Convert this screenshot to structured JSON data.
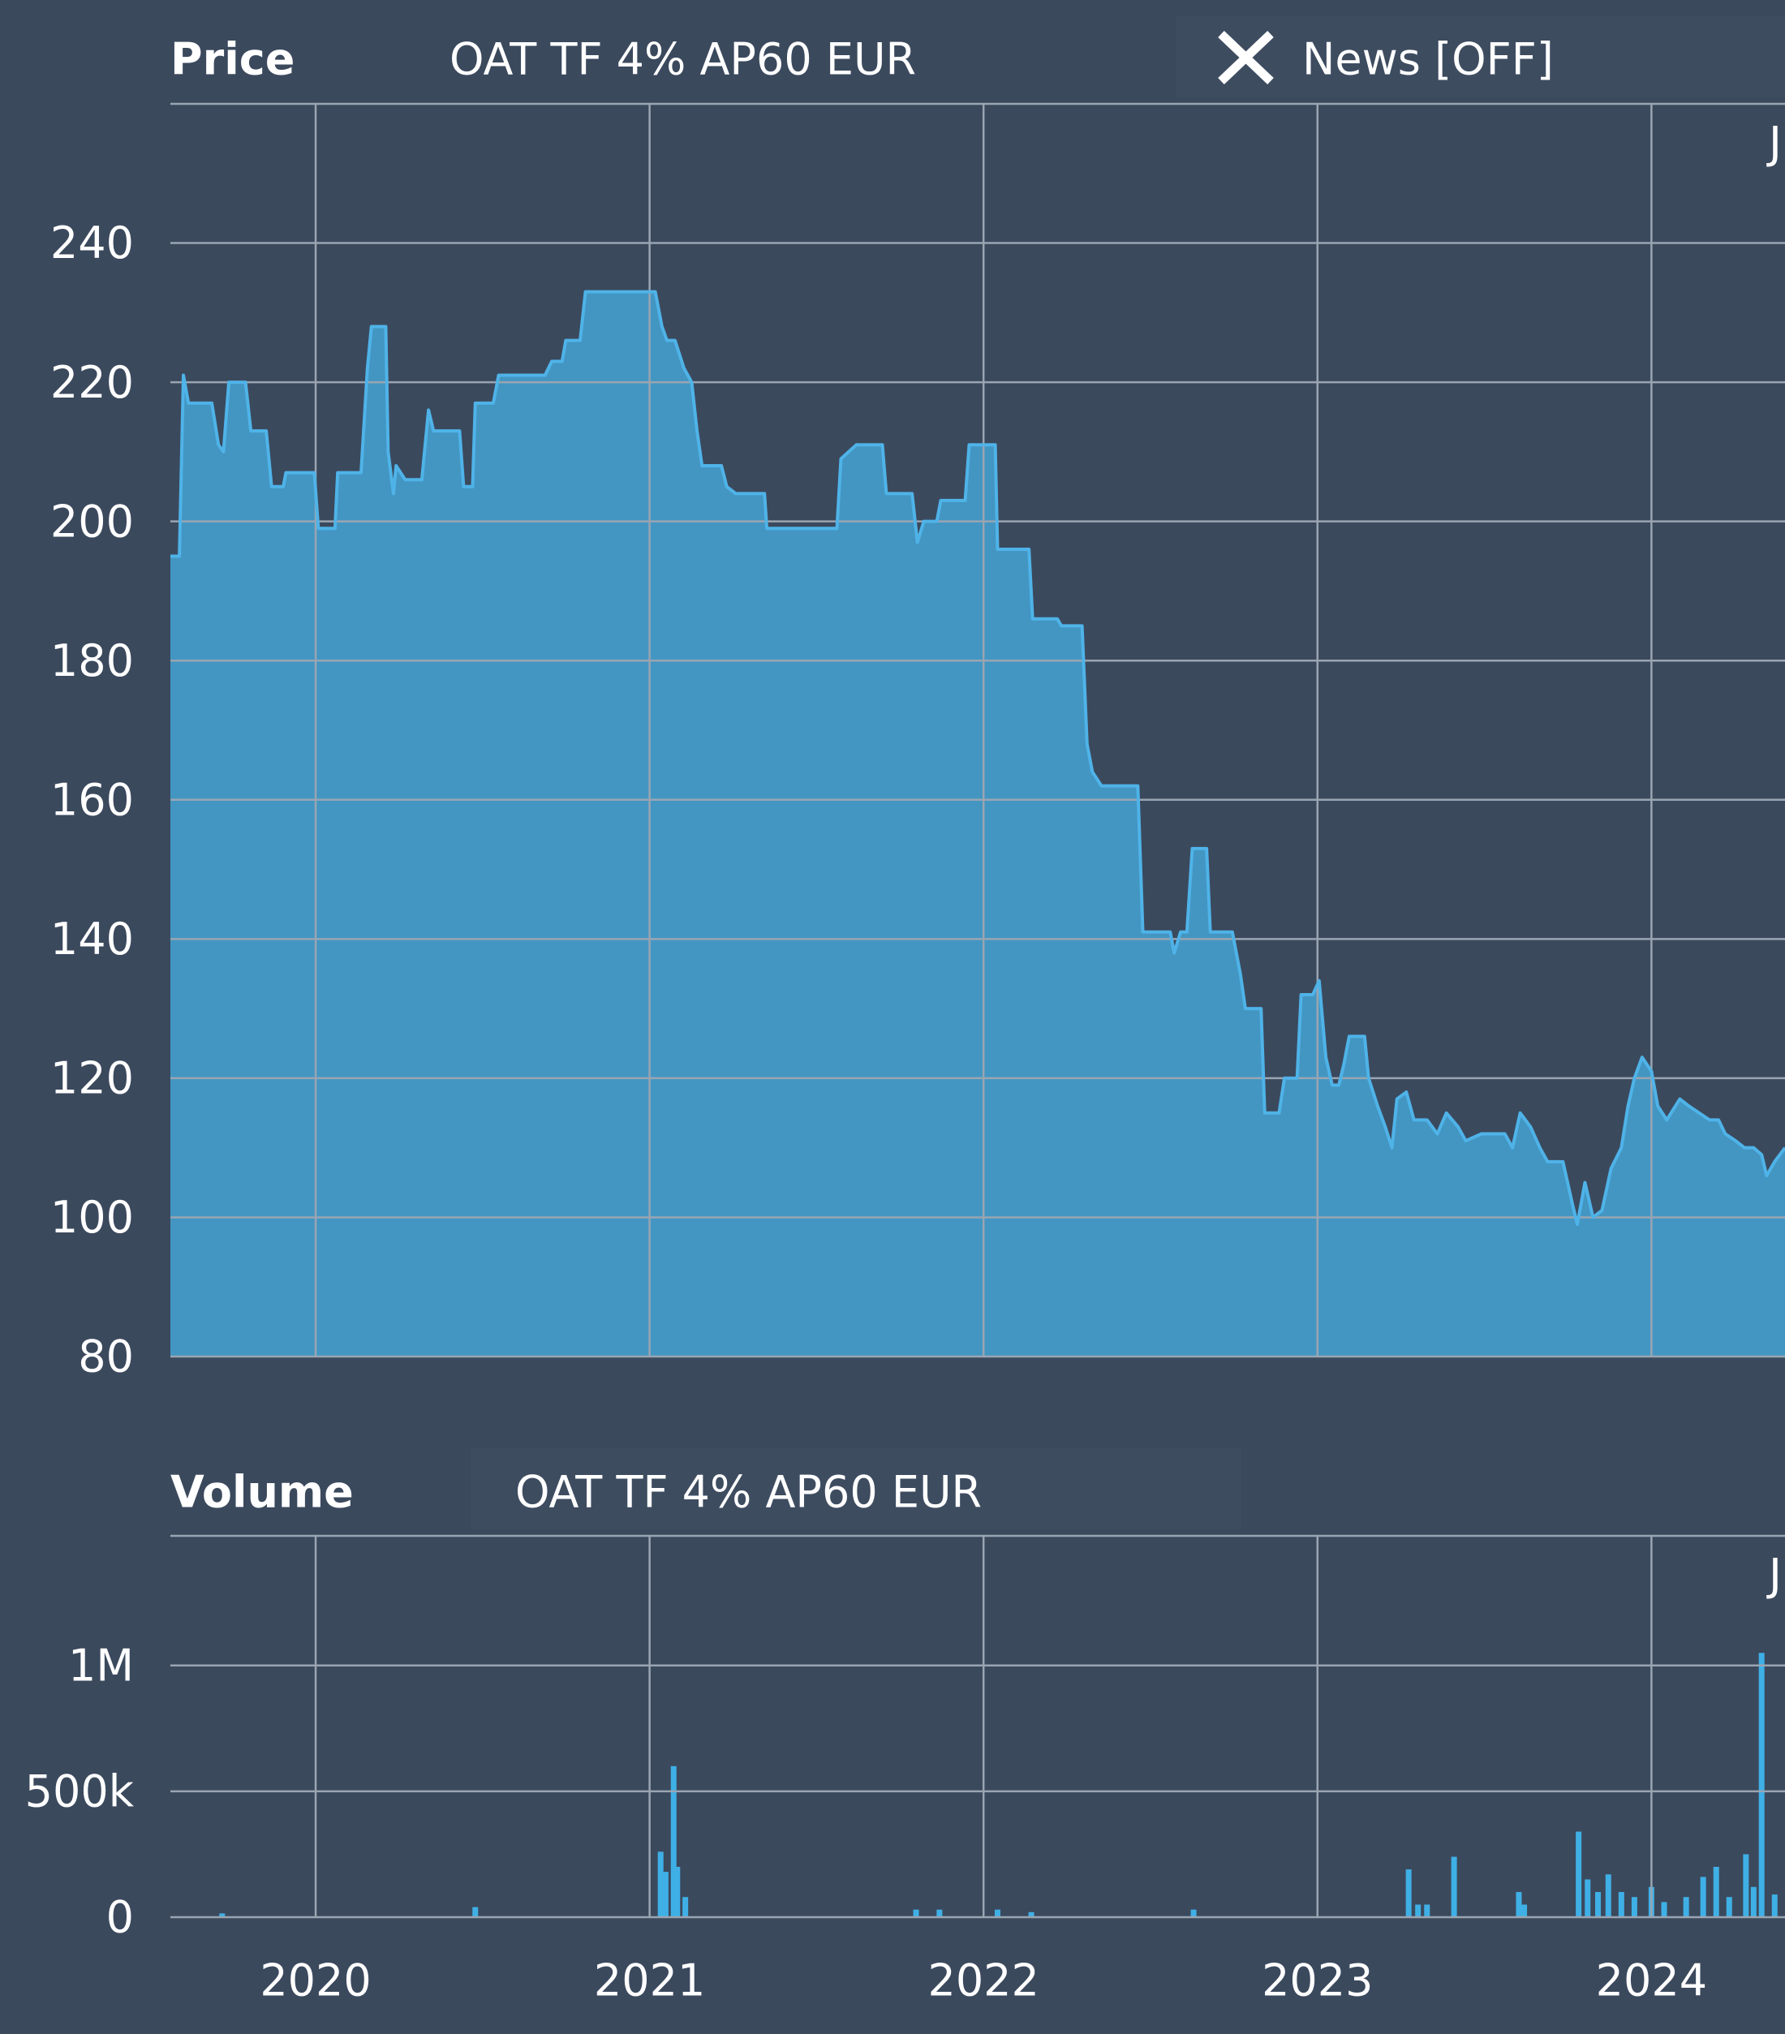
{
  "chart_data": [
    {
      "type": "area",
      "label": "Price",
      "title": "OAT TF 4% AP60 EUR",
      "toggle": "News [OFF]",
      "corner_label": "J",
      "color": "#4396c2",
      "line_color": "#4fb3e8",
      "grid": true,
      "xlim": [
        2019.565,
        2024.4
      ],
      "xticks": [
        2020,
        2021,
        2022,
        2023,
        2024
      ],
      "ylim": [
        80,
        260
      ],
      "yticks": [
        80,
        100,
        120,
        140,
        160,
        180,
        200,
        220,
        240
      ],
      "x": [
        2019.565,
        2019.592,
        2019.604,
        2019.619,
        2019.689,
        2019.709,
        2019.724,
        2019.74,
        2019.79,
        2019.806,
        2019.852,
        2019.868,
        2019.903,
        2019.911,
        2019.996,
        2020.008,
        2020.058,
        2020.066,
        2020.136,
        2020.155,
        2020.167,
        2020.21,
        2020.217,
        2020.233,
        2020.241,
        2020.268,
        2020.318,
        2020.338,
        2020.353,
        2020.431,
        2020.443,
        2020.47,
        2020.478,
        2020.532,
        2020.548,
        2020.687,
        2020.707,
        2020.738,
        2020.749,
        2020.792,
        2020.808,
        2021.017,
        2021.037,
        2021.052,
        2021.076,
        2021.103,
        2021.126,
        2021.142,
        2021.157,
        2021.215,
        2021.231,
        2021.258,
        2021.344,
        2021.351,
        2021.561,
        2021.573,
        2021.619,
        2021.697,
        2021.709,
        2021.786,
        2021.802,
        2021.821,
        2021.86,
        2021.872,
        2021.945,
        2021.957,
        2022.035,
        2022.042,
        2022.136,
        2022.147,
        2022.221,
        2022.233,
        2022.295,
        2022.31,
        2022.326,
        2022.353,
        2022.462,
        2022.477,
        2022.559,
        2022.571,
        2022.59,
        2022.609,
        2022.625,
        2022.668,
        2022.679,
        2022.745,
        2022.769,
        2022.784,
        2022.831,
        2022.842,
        2022.885,
        2022.901,
        2022.939,
        2022.951,
        2022.986,
        2023.005,
        2023.025,
        2023.044,
        2023.064,
        2023.079,
        2023.095,
        2023.141,
        2023.153,
        2023.18,
        2023.203,
        2023.223,
        2023.238,
        2023.266,
        2023.289,
        2023.328,
        2023.359,
        2023.386,
        2023.421,
        2023.444,
        2023.491,
        2023.561,
        2023.584,
        2023.607,
        2023.638,
        2023.666,
        2023.689,
        2023.735,
        2023.763,
        2023.778,
        2023.801,
        2023.825,
        2023.852,
        2023.879,
        2023.91,
        2023.93,
        2023.949,
        2023.972,
        2024.0,
        2024.019,
        2024.046,
        2024.085,
        2024.112,
        2024.143,
        2024.174,
        2024.201,
        2024.221,
        2024.252,
        2024.279,
        2024.306,
        2024.33,
        2024.345,
        2024.369,
        2024.4
      ],
      "values": [
        195,
        195,
        221,
        217,
        217,
        211,
        210,
        220,
        220,
        213,
        213,
        205,
        205,
        207,
        207,
        199,
        199,
        207,
        207,
        222,
        228,
        228,
        210,
        204,
        208,
        206,
        206,
        216,
        213,
        213,
        205,
        205,
        217,
        217,
        221,
        221,
        223,
        223,
        226,
        226,
        233,
        233,
        228,
        226,
        226,
        222,
        220,
        213,
        208,
        208,
        205,
        204,
        204,
        199,
        199,
        209,
        211,
        211,
        204,
        204,
        197,
        200,
        200,
        203,
        203,
        211,
        211,
        196,
        196,
        186,
        186,
        185,
        185,
        168,
        164,
        162,
        162,
        141,
        141,
        138,
        141,
        141,
        153,
        153,
        141,
        141,
        135,
        130,
        130,
        115,
        115,
        120,
        120,
        132,
        132,
        134,
        123,
        119,
        119,
        122,
        126,
        126,
        120,
        116,
        113,
        110,
        117,
        118,
        114,
        114,
        112,
        115,
        113,
        111,
        112,
        112,
        110,
        115,
        113,
        110,
        108,
        108,
        102,
        99,
        105,
        100,
        101,
        107,
        110,
        116,
        120,
        123,
        121,
        116,
        114,
        117,
        116,
        115,
        114,
        114,
        112,
        111,
        110,
        110,
        109,
        106,
        108,
        110
      ]
    },
    {
      "type": "bar",
      "label": "Volume",
      "title": "OAT TF 4% AP60 EUR",
      "corner_label": "J",
      "color": "#3fb0e6",
      "grid": true,
      "xlim": [
        2019.565,
        2024.4
      ],
      "xticks": [
        2020,
        2021,
        2022,
        2023,
        2024
      ],
      "ylim": [
        0,
        1515000
      ],
      "yticks": [
        0,
        {
          "value": 500000,
          "label": "500k"
        },
        {
          "value": 1000000,
          "label": "1M"
        }
      ],
      "x": [
        2019.72,
        2020.478,
        2021.033,
        2021.048,
        2021.072,
        2021.083,
        2021.107,
        2021.798,
        2021.868,
        2022.042,
        2022.143,
        2022.629,
        2023.273,
        2023.301,
        2023.328,
        2023.409,
        2023.603,
        2023.619,
        2023.782,
        2023.809,
        2023.84,
        2023.871,
        2023.91,
        2023.949,
        2024.0,
        2024.038,
        2024.104,
        2024.155,
        2024.194,
        2024.233,
        2024.283,
        2024.306,
        2024.33,
        2024.369
      ],
      "values": [
        15000,
        40000,
        260000,
        180000,
        600000,
        200000,
        80000,
        30000,
        30000,
        30000,
        20000,
        30000,
        190000,
        50000,
        50000,
        240000,
        100000,
        50000,
        340000,
        150000,
        100000,
        170000,
        100000,
        80000,
        120000,
        60000,
        80000,
        160000,
        200000,
        80000,
        250000,
        120000,
        1050000,
        90000
      ]
    }
  ]
}
